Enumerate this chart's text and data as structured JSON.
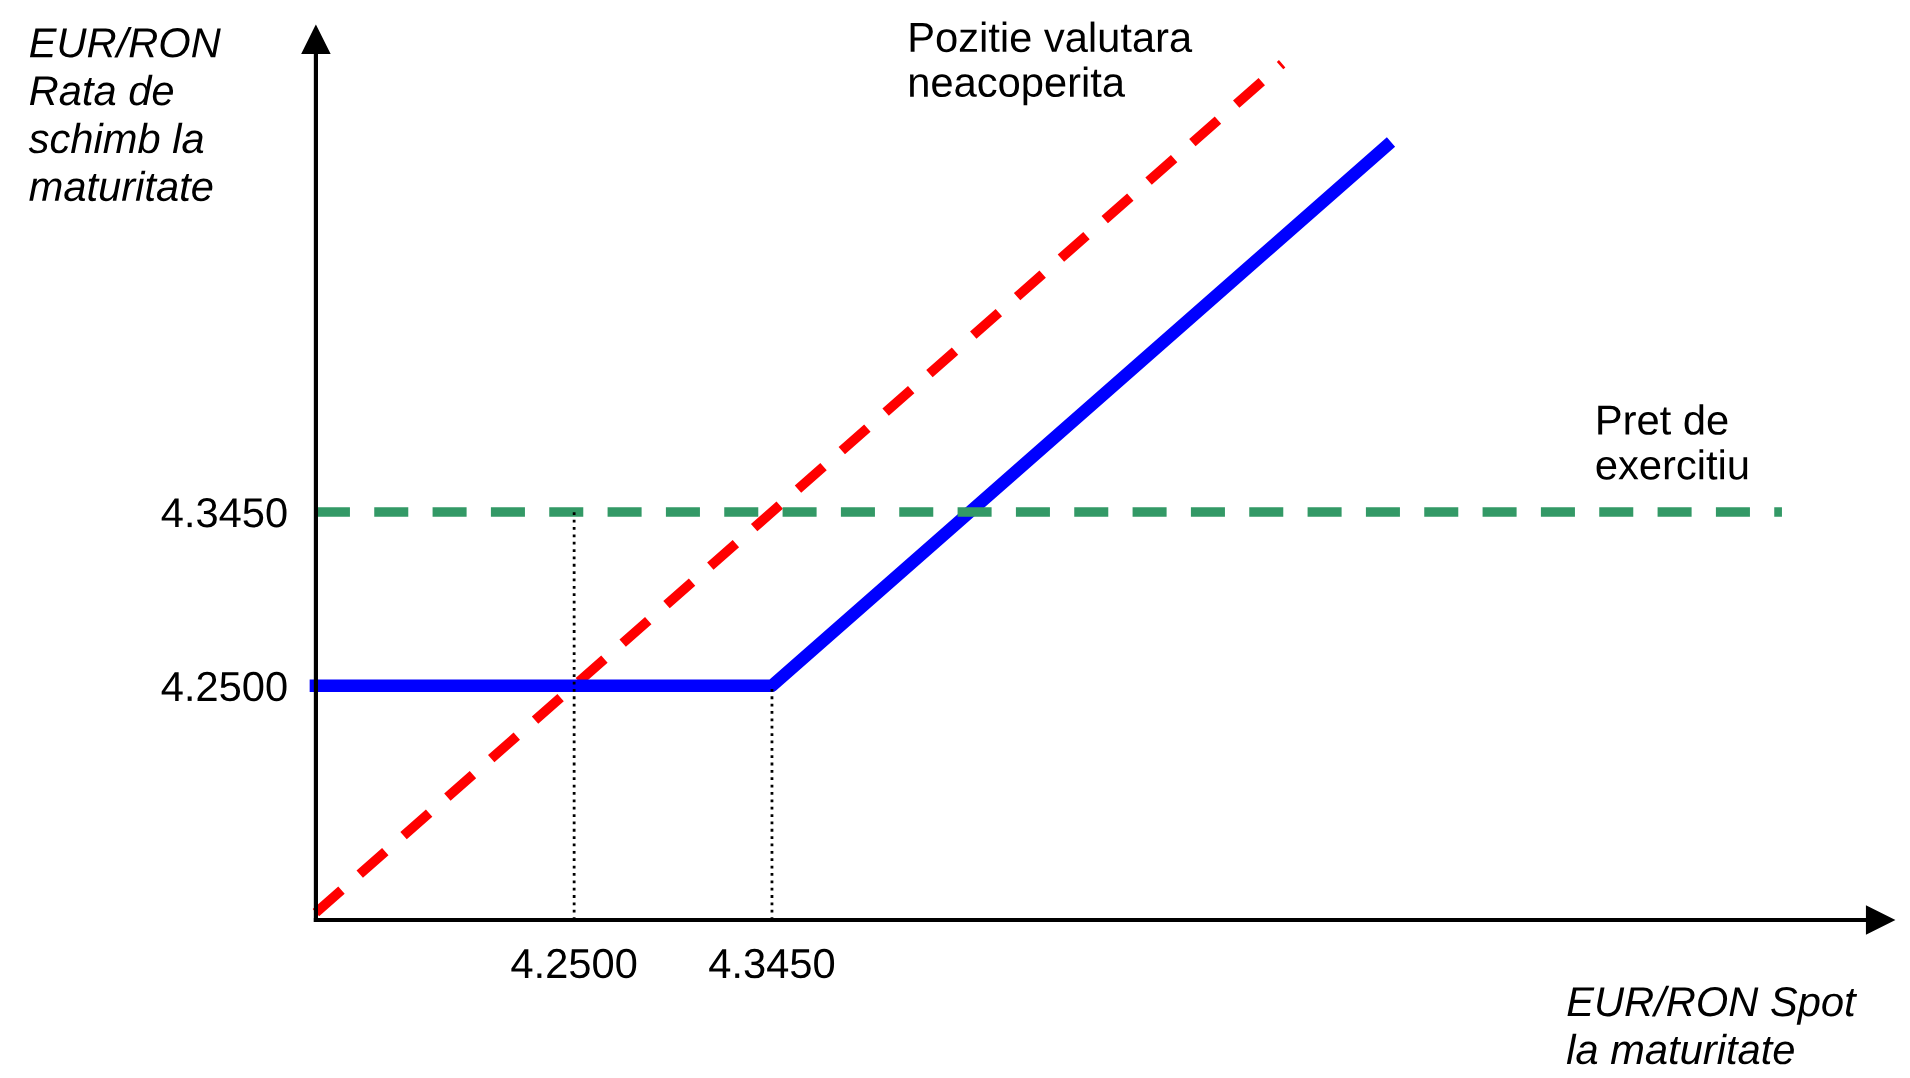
{
  "chart_data": {
    "type": "line",
    "xlabel": "EUR/RON Spot\nla maturitate",
    "ylabel": "EUR/RON\nRata de\nschimb la\nmaturitate",
    "annotations": [
      "Pozitie valutara\nneacoperita",
      "Pret de\nexercitiu"
    ],
    "xlim": [
      4.126,
      4.877
    ],
    "ylim": [
      4.122,
      4.603
    ],
    "xticks": [
      {
        "value": 4.25,
        "label": "4.2500"
      },
      {
        "value": 4.345,
        "label": "4.3450"
      }
    ],
    "yticks": [
      {
        "value": 4.25,
        "label": "4.2500"
      },
      {
        "value": 4.345,
        "label": "4.3450"
      }
    ],
    "grid": false,
    "series": [
      {
        "color": "#ff0000",
        "line_style": "dashed",
        "x": [
          4.126,
          4.59
        ],
        "values": [
          4.126,
          4.59
        ]
      },
      {
        "color": "#0000ff",
        "line_style": "solid",
        "x": [
          4.126,
          4.345,
          4.64
        ],
        "values": [
          4.25,
          4.25,
          4.545
        ]
      },
      {
        "color": "#339966",
        "line_style": "dashed",
        "x": [
          4.126,
          4.83
        ],
        "values": [
          4.345,
          4.345
        ]
      },
      {
        "color": "#000000",
        "line_style": "dotted",
        "x": [
          4.25,
          4.25
        ],
        "values": [
          4.122,
          4.345
        ]
      },
      {
        "color": "#000000",
        "line_style": "dotted",
        "x": [
          4.345,
          4.345
        ],
        "values": [
          4.122,
          4.25
        ]
      }
    ]
  }
}
